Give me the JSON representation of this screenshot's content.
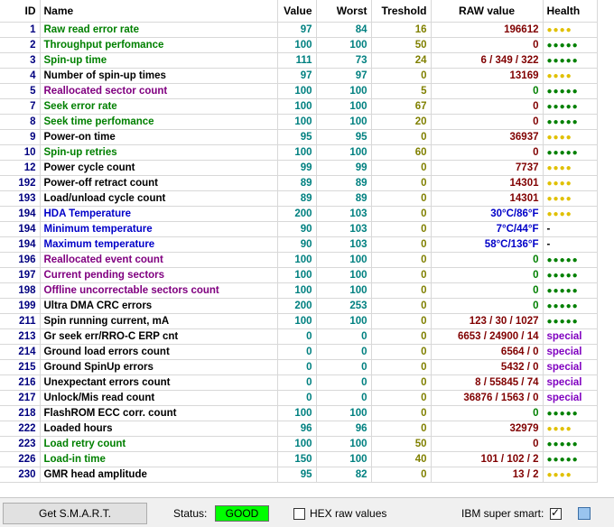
{
  "columns": {
    "id": "ID",
    "name": "Name",
    "value": "Value",
    "worst": "Worst",
    "threshold": "Treshold",
    "raw": "RAW value",
    "health": "Health"
  },
  "colors": {
    "ok_dots": "#008000",
    "warn_dots": "#e0c000",
    "name_green": "#008000",
    "name_purple": "#800080",
    "name_blue": "#0000c8",
    "status_good": "#00ff00"
  },
  "rows": [
    {
      "id": "1",
      "name": "Raw read error rate",
      "value": "97",
      "worst": "84",
      "threshold": "16",
      "raw": "196612",
      "health": "●●●●",
      "nc": "green",
      "hc": "warn",
      "rc": ""
    },
    {
      "id": "2",
      "name": "Throughput perfomance",
      "value": "100",
      "worst": "100",
      "threshold": "50",
      "raw": "0",
      "health": "●●●●●",
      "nc": "green",
      "hc": "ok",
      "rc": ""
    },
    {
      "id": "3",
      "name": "Spin-up time",
      "value": "111",
      "worst": "73",
      "threshold": "24",
      "raw": "6 / 349 / 322",
      "health": "●●●●●",
      "nc": "green",
      "hc": "ok",
      "rc": ""
    },
    {
      "id": "4",
      "name": "Number of spin-up times",
      "value": "97",
      "worst": "97",
      "threshold": "0",
      "raw": "13169",
      "health": "●●●●",
      "nc": "black",
      "hc": "warn",
      "rc": ""
    },
    {
      "id": "5",
      "name": "Reallocated sector count",
      "value": "100",
      "worst": "100",
      "threshold": "5",
      "raw": "0",
      "health": "●●●●●",
      "nc": "purple",
      "hc": "ok",
      "rc": "green"
    },
    {
      "id": "7",
      "name": "Seek error rate",
      "value": "100",
      "worst": "100",
      "threshold": "67",
      "raw": "0",
      "health": "●●●●●",
      "nc": "green",
      "hc": "ok",
      "rc": ""
    },
    {
      "id": "8",
      "name": "Seek time perfomance",
      "value": "100",
      "worst": "100",
      "threshold": "20",
      "raw": "0",
      "health": "●●●●●",
      "nc": "green",
      "hc": "ok",
      "rc": ""
    },
    {
      "id": "9",
      "name": "Power-on time",
      "value": "95",
      "worst": "95",
      "threshold": "0",
      "raw": "36937",
      "health": "●●●●",
      "nc": "black",
      "hc": "warn",
      "rc": ""
    },
    {
      "id": "10",
      "name": "Spin-up retries",
      "value": "100",
      "worst": "100",
      "threshold": "60",
      "raw": "0",
      "health": "●●●●●",
      "nc": "green",
      "hc": "ok",
      "rc": ""
    },
    {
      "id": "12",
      "name": "Power cycle count",
      "value": "99",
      "worst": "99",
      "threshold": "0",
      "raw": "7737",
      "health": "●●●●",
      "nc": "black",
      "hc": "warn",
      "rc": ""
    },
    {
      "id": "192",
      "name": "Power-off retract count",
      "value": "89",
      "worst": "89",
      "threshold": "0",
      "raw": "14301",
      "health": "●●●●",
      "nc": "black",
      "hc": "warn",
      "rc": ""
    },
    {
      "id": "193",
      "name": "Load/unload cycle count",
      "value": "89",
      "worst": "89",
      "threshold": "0",
      "raw": "14301",
      "health": "●●●●",
      "nc": "black",
      "hc": "warn",
      "rc": ""
    },
    {
      "id": "194",
      "name": "HDA Temperature",
      "value": "200",
      "worst": "103",
      "threshold": "0",
      "raw": "30°C/86°F",
      "health": "●●●●",
      "nc": "blue",
      "hc": "warn",
      "rc": "blue"
    },
    {
      "id": "194",
      "name": "Minimum temperature",
      "value": "90",
      "worst": "103",
      "threshold": "0",
      "raw": "7°C/44°F",
      "health": "-",
      "nc": "blue",
      "hc": "dash",
      "rc": "blue"
    },
    {
      "id": "194",
      "name": "Maximum temperature",
      "value": "90",
      "worst": "103",
      "threshold": "0",
      "raw": "58°C/136°F",
      "health": "-",
      "nc": "blue",
      "hc": "dash",
      "rc": "blue"
    },
    {
      "id": "196",
      "name": "Reallocated event count",
      "value": "100",
      "worst": "100",
      "threshold": "0",
      "raw": "0",
      "health": "●●●●●",
      "nc": "purple",
      "hc": "ok",
      "rc": "green"
    },
    {
      "id": "197",
      "name": "Current pending sectors",
      "value": "100",
      "worst": "100",
      "threshold": "0",
      "raw": "0",
      "health": "●●●●●",
      "nc": "purple",
      "hc": "ok",
      "rc": "green"
    },
    {
      "id": "198",
      "name": "Offline uncorrectable sectors count",
      "value": "100",
      "worst": "100",
      "threshold": "0",
      "raw": "0",
      "health": "●●●●●",
      "nc": "purple",
      "hc": "ok",
      "rc": "green"
    },
    {
      "id": "199",
      "name": "Ultra DMA CRC errors",
      "value": "200",
      "worst": "253",
      "threshold": "0",
      "raw": "0",
      "health": "●●●●●",
      "nc": "black",
      "hc": "ok",
      "rc": "green"
    },
    {
      "id": "211",
      "name": "Spin running current, mA",
      "value": "100",
      "worst": "100",
      "threshold": "0",
      "raw": "123 / 30 / 1027",
      "health": "●●●●●",
      "nc": "black",
      "hc": "ok",
      "rc": ""
    },
    {
      "id": "213",
      "name": "Gr seek err/RRO-C ERP cnt",
      "value": "0",
      "worst": "0",
      "threshold": "0",
      "raw": "6653 / 24900 / 14",
      "health": "special",
      "nc": "black",
      "hc": "special",
      "rc": ""
    },
    {
      "id": "214",
      "name": "Ground load errors count",
      "value": "0",
      "worst": "0",
      "threshold": "0",
      "raw": "6564 / 0",
      "health": "special",
      "nc": "black",
      "hc": "special",
      "rc": ""
    },
    {
      "id": "215",
      "name": "Ground SpinUp errors",
      "value": "0",
      "worst": "0",
      "threshold": "0",
      "raw": "5432 / 0",
      "health": "special",
      "nc": "black",
      "hc": "special",
      "rc": ""
    },
    {
      "id": "216",
      "name": "Unexpectant errors count",
      "value": "0",
      "worst": "0",
      "threshold": "0",
      "raw": "8 / 55845 / 74",
      "health": "special",
      "nc": "black",
      "hc": "special",
      "rc": ""
    },
    {
      "id": "217",
      "name": "Unlock/Mis read count",
      "value": "0",
      "worst": "0",
      "threshold": "0",
      "raw": "36876 / 1563 / 0",
      "health": "special",
      "nc": "black",
      "hc": "special",
      "rc": ""
    },
    {
      "id": "218",
      "name": "FlashROM ECC corr. count",
      "value": "100",
      "worst": "100",
      "threshold": "0",
      "raw": "0",
      "health": "●●●●●",
      "nc": "black",
      "hc": "ok",
      "rc": "green"
    },
    {
      "id": "222",
      "name": "Loaded hours",
      "value": "96",
      "worst": "96",
      "threshold": "0",
      "raw": "32979",
      "health": "●●●●",
      "nc": "black",
      "hc": "warn",
      "rc": ""
    },
    {
      "id": "223",
      "name": "Load retry count",
      "value": "100",
      "worst": "100",
      "threshold": "50",
      "raw": "0",
      "health": "●●●●●",
      "nc": "green",
      "hc": "ok",
      "rc": ""
    },
    {
      "id": "226",
      "name": "Load-in time",
      "value": "150",
      "worst": "100",
      "threshold": "40",
      "raw": "101 / 102 / 2",
      "health": "●●●●●",
      "nc": "green",
      "hc": "ok",
      "rc": ""
    },
    {
      "id": "230",
      "name": "GMR head amplitude",
      "value": "95",
      "worst": "82",
      "threshold": "0",
      "raw": "13 / 2",
      "health": "●●●●",
      "nc": "black",
      "hc": "warn",
      "rc": ""
    }
  ],
  "statusbar": {
    "get_smart_label": "Get S.M.A.R.T.",
    "status_label": "Status:",
    "status_value": "GOOD",
    "hex_label": "HEX raw values",
    "hex_checked": false,
    "ibm_label": "IBM super smart:",
    "ibm_checked": true,
    "ibm_check_glyph": "✓"
  }
}
